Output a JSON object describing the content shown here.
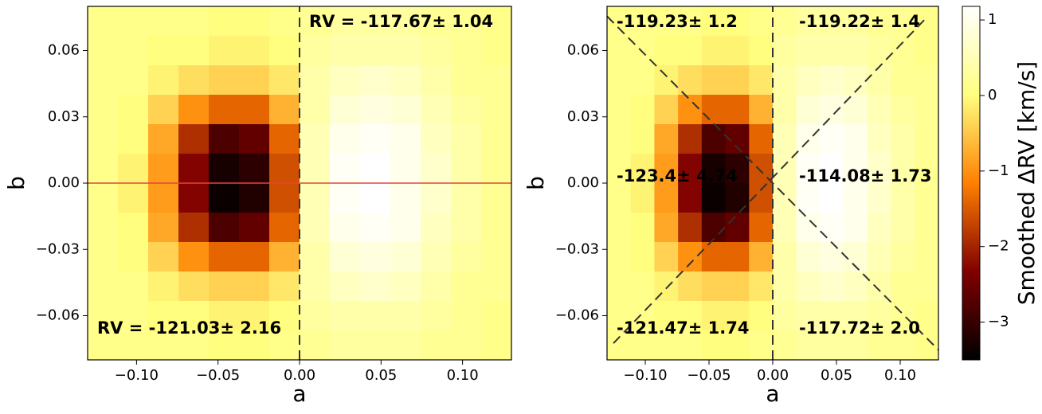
{
  "chart_data": [
    {
      "type": "heatmap",
      "xlabel": "a",
      "ylabel": "b",
      "xlim": [
        -0.13,
        0.13
      ],
      "ylim": [
        -0.08,
        0.08
      ],
      "xticks": [
        {
          "value": -0.1,
          "label": "−0.10"
        },
        {
          "value": -0.05,
          "label": "−0.05"
        },
        {
          "value": 0,
          "label": "0.00"
        },
        {
          "value": 0.05,
          "label": "0.05"
        },
        {
          "value": 0.1,
          "label": "0.10"
        }
      ],
      "yticks": [
        {
          "value": -0.06,
          "label": "−0.06"
        },
        {
          "value": -0.03,
          "label": "−0.03"
        },
        {
          "value": 0,
          "label": "0.00"
        },
        {
          "value": 0.03,
          "label": "0.03"
        },
        {
          "value": 0.06,
          "label": "0.06"
        }
      ],
      "colormap": "afmhot",
      "zlim": [
        -3.5,
        1.18
      ],
      "z": [
        [
          0.1,
          0.1,
          0.1,
          0.1,
          0,
          0,
          0.1,
          0.2,
          0.3,
          0.3,
          0.3,
          0.2,
          0.2,
          0.1
        ],
        [
          0.1,
          0.1,
          0,
          0,
          -0.1,
          -0.1,
          0,
          0.3,
          0.4,
          0.4,
          0.4,
          0.3,
          0.2,
          0.1
        ],
        [
          0.1,
          0.1,
          -0.1,
          -0.3,
          -0.4,
          -0.4,
          -0.2,
          0.4,
          0.6,
          0.7,
          0.6,
          0.4,
          0.2,
          0.2
        ],
        [
          0.1,
          0,
          -0.4,
          -1,
          -1.4,
          -1.4,
          -0.7,
          0.4,
          0.8,
          0.9,
          0.8,
          0.5,
          0.3,
          0.2
        ],
        [
          0.1,
          0,
          -0.8,
          -1.9,
          -2.8,
          -2.6,
          -1.4,
          0.5,
          1,
          1.1,
          1,
          0.6,
          0.4,
          0.2
        ],
        [
          0.1,
          -0.1,
          -0.9,
          -2.3,
          -3.3,
          -3.1,
          -1.6,
          0.5,
          1.1,
          1.2,
          1,
          0.7,
          0.4,
          0.2
        ],
        [
          0.1,
          -0.1,
          -0.9,
          -2.3,
          -3.4,
          -3.2,
          -1.6,
          0.5,
          1.1,
          1.2,
          1,
          0.7,
          0.4,
          0.2
        ],
        [
          0.1,
          0,
          -0.8,
          -1.9,
          -2.8,
          -2.6,
          -1.4,
          0.5,
          1,
          1.1,
          1,
          0.6,
          0.4,
          0.2
        ],
        [
          0.1,
          0,
          -0.4,
          -1,
          -1.4,
          -1.4,
          -0.7,
          0.4,
          0.8,
          0.9,
          0.8,
          0.5,
          0.3,
          0.2
        ],
        [
          0.1,
          0.1,
          -0.1,
          -0.3,
          -0.4,
          -0.4,
          -0.2,
          0.4,
          0.6,
          0.7,
          0.6,
          0.4,
          0.2,
          0.2
        ],
        [
          0.1,
          0.1,
          0,
          0,
          -0.1,
          -0.1,
          0,
          0.3,
          0.4,
          0.4,
          0.4,
          0.3,
          0.2,
          0.1
        ],
        [
          0.1,
          0.1,
          0.1,
          0.1,
          0,
          0,
          0.1,
          0.2,
          0.3,
          0.3,
          0.3,
          0.2,
          0.2,
          0.1
        ]
      ],
      "lines": [
        {
          "x": [
            0,
            0
          ],
          "y": [
            -0.08,
            0.08
          ],
          "color": "#333333",
          "dashed": true
        },
        {
          "x": [
            -0.13,
            0.13
          ],
          "y": [
            0,
            0
          ],
          "color": "#e8423a",
          "dashed": false
        }
      ],
      "annotations": [
        "RV = -117.67± 1.04",
        "RV = -121.03± 2.16"
      ],
      "annotation_color": "#228b22"
    },
    {
      "type": "heatmap",
      "xlabel": "a",
      "ylabel": "b",
      "xlim": [
        -0.13,
        0.13
      ],
      "ylim": [
        -0.08,
        0.08
      ],
      "xticks": [
        {
          "value": -0.1,
          "label": "−0.10"
        },
        {
          "value": -0.05,
          "label": "−0.05"
        },
        {
          "value": 0,
          "label": "0.00"
        },
        {
          "value": 0.05,
          "label": "0.05"
        },
        {
          "value": 0.1,
          "label": "0.10"
        }
      ],
      "yticks": [
        {
          "value": -0.06,
          "label": "−0.06"
        },
        {
          "value": -0.03,
          "label": "−0.03"
        },
        {
          "value": 0,
          "label": "0.00"
        },
        {
          "value": 0.03,
          "label": "0.03"
        },
        {
          "value": 0.06,
          "label": "0.06"
        }
      ],
      "colormap": "afmhot",
      "zlim": [
        -3.5,
        1.18
      ],
      "z": [
        [
          0.1,
          0.1,
          0.1,
          0.1,
          0,
          0,
          0.1,
          0.2,
          0.3,
          0.3,
          0.3,
          0.2,
          0.2,
          0.1
        ],
        [
          0.1,
          0.1,
          0,
          0,
          -0.1,
          -0.1,
          0,
          0.3,
          0.4,
          0.4,
          0.4,
          0.3,
          0.2,
          0.1
        ],
        [
          0.1,
          0.1,
          -0.1,
          -0.3,
          -0.4,
          -0.4,
          -0.2,
          0.4,
          0.6,
          0.7,
          0.6,
          0.4,
          0.2,
          0.2
        ],
        [
          0.1,
          0,
          -0.4,
          -1,
          -1.4,
          -1.4,
          -0.7,
          0.4,
          0.8,
          0.9,
          0.8,
          0.5,
          0.3,
          0.2
        ],
        [
          0.1,
          0,
          -0.8,
          -1.9,
          -2.8,
          -2.6,
          -1.4,
          0.5,
          1,
          1.1,
          1,
          0.6,
          0.4,
          0.2
        ],
        [
          0.1,
          -0.1,
          -0.9,
          -2.3,
          -3.3,
          -3.1,
          -1.6,
          0.5,
          1.1,
          1.2,
          1,
          0.7,
          0.4,
          0.2
        ],
        [
          0.1,
          -0.1,
          -0.9,
          -2.3,
          -3.4,
          -3.2,
          -1.6,
          0.5,
          1.1,
          1.2,
          1,
          0.7,
          0.4,
          0.2
        ],
        [
          0.1,
          0,
          -0.8,
          -1.9,
          -2.8,
          -2.6,
          -1.4,
          0.5,
          1,
          1.1,
          1,
          0.6,
          0.4,
          0.2
        ],
        [
          0.1,
          0,
          -0.4,
          -1,
          -1.4,
          -1.4,
          -0.7,
          0.4,
          0.8,
          0.9,
          0.8,
          0.5,
          0.3,
          0.2
        ],
        [
          0.1,
          0.1,
          -0.1,
          -0.3,
          -0.4,
          -0.4,
          -0.2,
          0.4,
          0.6,
          0.7,
          0.6,
          0.4,
          0.2,
          0.2
        ],
        [
          0.1,
          0.1,
          0,
          0,
          -0.1,
          -0.1,
          0,
          0.3,
          0.4,
          0.4,
          0.4,
          0.3,
          0.2,
          0.1
        ],
        [
          0.1,
          0.1,
          0.1,
          0.1,
          0,
          0,
          0.1,
          0.2,
          0.3,
          0.3,
          0.3,
          0.2,
          0.2,
          0.1
        ]
      ],
      "lines": [
        {
          "x": [
            0,
            0
          ],
          "y": [
            -0.08,
            0.08
          ],
          "color": "#333333",
          "dashed": true
        },
        {
          "x": [
            -0.13,
            0.13
          ],
          "y": [
            0.0755,
            -0.0755
          ],
          "color": "#333333",
          "dashed": true
        },
        {
          "x": [
            -0.125,
            0.12
          ],
          "y": [
            -0.0725,
            0.0745
          ],
          "color": "#333333",
          "dashed": true
        }
      ],
      "annotations": [
        "-119.23± 1.2",
        "-119.22± 1.4",
        "-123.4± 4.74",
        "-114.08± 1.73",
        "-121.47± 1.74",
        "-117.72± 2.0"
      ],
      "annotation_color": "#228b22",
      "colorbar": {
        "label": "Smoothed ΔRV [km/s]",
        "ticks": [
          {
            "value": -3,
            "label": "−3"
          },
          {
            "value": -2,
            "label": "−2"
          },
          {
            "value": -1,
            "label": "−1"
          },
          0,
          1
        ]
      }
    }
  ]
}
